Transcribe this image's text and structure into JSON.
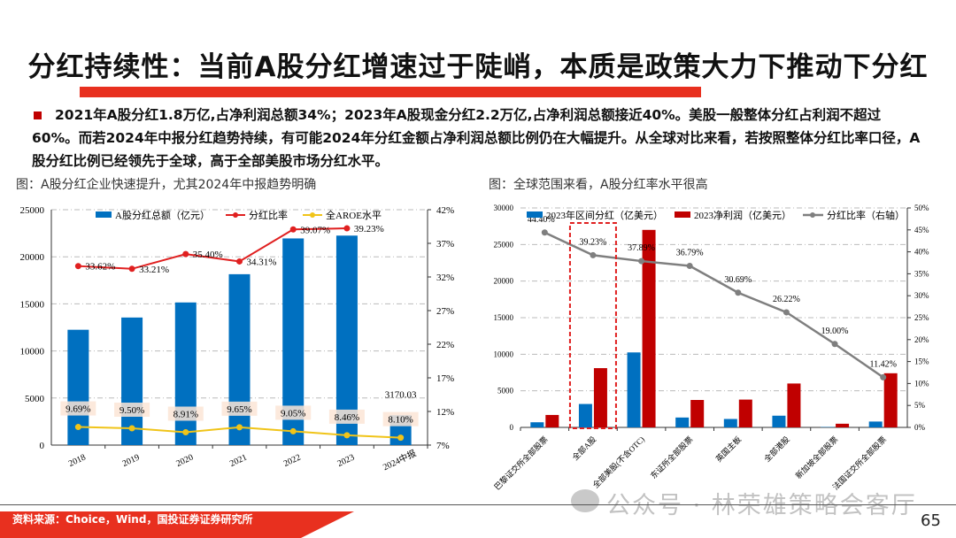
{
  "title": "分红持续性：当前A股分红增速过于陡峭，本质是政策大力下推动下分红",
  "bullet": "2021年A股分红1.8万亿,占净利润总额34%；2023年A股现金分红2.2万亿,占净利润总额接近40%。美股一般整体分红占利润不超过60%。而若2024年中报分红趋势持续，有可能2024年分红金额占净利润总额比例仍在大幅提升。从全球对比来看，若按照整体分红比率口径，A股分红比例已经领先于全球，高于全部美股市场分红水平。",
  "captions": {
    "left": "图：A股分红企业快速提升，尤其2024年中报趋势明确",
    "right": "图：全球范围来看，A股分红率水平很高"
  },
  "footer": {
    "source": "资料来源：Choice，Wind，国投证券证券研究所",
    "page": "65",
    "watermark": "公众号 · 林荣雄策略会客厅"
  },
  "colors": {
    "accent": "#e8301f",
    "blue": "#0070c0",
    "red": "#c00000",
    "yellow": "#f0c419",
    "gray": "#7f7f7f"
  },
  "chart_data": [
    {
      "type": "bar+line",
      "categories": [
        "2018",
        "2019",
        "2020",
        "2021",
        "2022",
        "2023",
        "2024中报"
      ],
      "series": [
        {
          "name": "A股分红总额（亿元）",
          "type": "bar",
          "axis": "left",
          "values": [
            12250,
            13550,
            15150,
            18150,
            21950,
            22250,
            3170.03
          ],
          "labels": [
            "",
            "",
            "",
            "",
            "",
            "",
            "3170.03"
          ]
        },
        {
          "name": "分红比率",
          "type": "line",
          "axis": "right",
          "values": [
            33.62,
            33.21,
            35.4,
            34.31,
            39.07,
            39.23,
            null
          ],
          "labels": [
            "33.62%",
            "33.21%",
            "35.40%",
            "34.31%",
            "39.07%",
            "39.23%",
            ""
          ]
        },
        {
          "name": "全AROE水平",
          "type": "line",
          "axis": "right",
          "values": [
            9.69,
            9.5,
            8.91,
            9.65,
            9.05,
            8.46,
            8.1
          ],
          "labels": [
            "9.69%",
            "9.50%",
            "8.91%",
            "9.65%",
            "9.05%",
            "8.46%",
            "8.10%"
          ]
        }
      ],
      "y_left": {
        "min": 0,
        "max": 25000,
        "ticks": [
          "0",
          "5000",
          "10000",
          "15000",
          "20000",
          "25000"
        ]
      },
      "y_right": {
        "min": 7,
        "max": 42,
        "ticks": [
          "7%",
          "12%",
          "17%",
          "22%",
          "27%",
          "32%",
          "37%",
          "42%"
        ]
      },
      "grid": true,
      "legend": "top"
    },
    {
      "type": "bar+line",
      "categories": [
        "巴黎证交所全部股票",
        "全部A股",
        "全部美股(不含OTC)",
        "东证所全部股票",
        "英国主板",
        "全部港股",
        "新加坡全部股票",
        "法国证交所全部股票"
      ],
      "series": [
        {
          "name": "2023年区间分红（亿美元）",
          "type": "bar",
          "axis": "left",
          "values": [
            700,
            3200,
            10250,
            1350,
            1150,
            1600,
            50,
            800
          ]
        },
        {
          "name": "2023净利润（亿美元）",
          "type": "bar",
          "axis": "left",
          "values": [
            1700,
            8100,
            27000,
            3750,
            3800,
            6000,
            500,
            7400
          ]
        },
        {
          "name": "分红比率（右轴）",
          "type": "line",
          "axis": "right",
          "values": [
            44.4,
            39.23,
            37.89,
            36.79,
            30.69,
            26.22,
            19.0,
            11.42
          ],
          "labels": [
            "44.40%",
            "39.23%",
            "37.89%",
            "36.79%",
            "30.69%",
            "26.22%",
            "19.00%",
            "11.42%"
          ]
        }
      ],
      "highlight": "全部A股",
      "y_left": {
        "min": 0,
        "max": 30000,
        "ticks": [
          "0",
          "5000",
          "10000",
          "15000",
          "20000",
          "25000",
          "30000"
        ]
      },
      "y_right": {
        "min": 0,
        "max": 50,
        "ticks": [
          "0%",
          "5%",
          "10%",
          "15%",
          "20%",
          "25%",
          "30%",
          "35%",
          "40%",
          "45%",
          "50%"
        ]
      },
      "grid": true,
      "legend": "top"
    }
  ]
}
